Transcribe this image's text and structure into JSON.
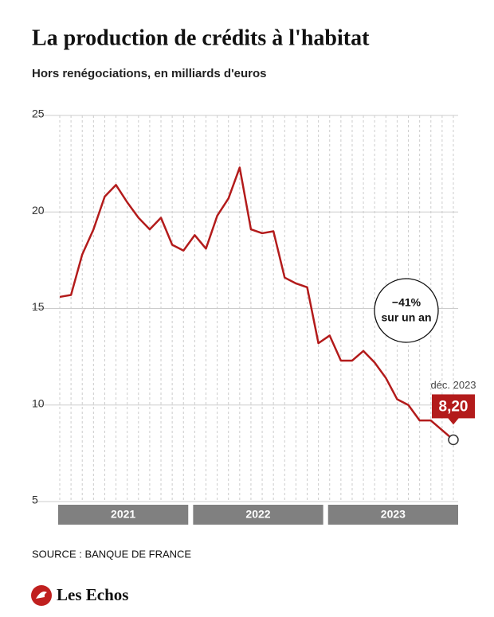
{
  "chart_data": {
    "type": "line",
    "title": "La production de crédits à l'habitat",
    "subtitle": "Hors renégociations, en milliards d'euros",
    "categories": [
      null,
      null,
      null,
      null,
      null,
      null,
      null,
      null,
      null,
      null,
      null,
      null,
      null,
      null,
      null,
      null,
      null,
      null,
      null,
      null,
      null,
      null,
      null,
      null,
      null,
      null,
      null,
      null,
      null,
      null,
      null,
      null,
      null,
      null,
      null,
      null
    ],
    "year_labels": [
      "2021",
      "2022",
      "2023"
    ],
    "series": [
      {
        "name": null,
        "color": "#b31b1b",
        "values": [
          15.6,
          15.7,
          17.8,
          19.1,
          20.8,
          21.4,
          20.5,
          19.7,
          19.1,
          19.7,
          18.3,
          18.0,
          18.8,
          18.1,
          19.8,
          20.7,
          22.3,
          19.1,
          18.9,
          19.0,
          16.6,
          16.3,
          16.1,
          13.2,
          13.6,
          12.3,
          12.3,
          12.8,
          12.2,
          11.4,
          10.3,
          10.0,
          9.2,
          9.2,
          8.7,
          8.2
        ],
        "value_labels": [
          null,
          null,
          null,
          null,
          null,
          null,
          null,
          null,
          null,
          null,
          null,
          null,
          null,
          null,
          null,
          null,
          null,
          null,
          null,
          null,
          null,
          null,
          null,
          null,
          null,
          null,
          null,
          null,
          null,
          null,
          null,
          null,
          null,
          null,
          null,
          "8,20"
        ]
      }
    ],
    "last_point_label": "déc. 2023",
    "annotation": [
      "−41%",
      "sur un an"
    ],
    "ylim": [
      5,
      25
    ],
    "yticks": [
      5,
      10,
      15,
      20,
      25
    ],
    "grid": true,
    "source": "SOURCE : BANQUE DE FRANCE",
    "brand": "Les Echos"
  }
}
